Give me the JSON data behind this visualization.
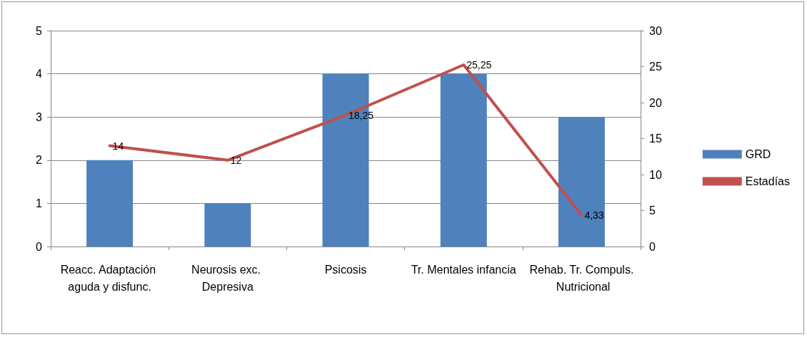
{
  "chart_data": {
    "type": "bar",
    "categories": [
      "Reacc. Adaptación aguda y disfunc.",
      "Neurosis exc. Depresiva",
      "Psicosis",
      "Tr. Mentales infancia",
      "Rehab. Tr. Compuls. Nutricional"
    ],
    "series": [
      {
        "name": "GRD",
        "color": "#4f81bd",
        "values": [
          2,
          1,
          4,
          4,
          3
        ]
      },
      {
        "name": "Estadías",
        "type": "line",
        "axis": "y2",
        "color": "#c0504d",
        "values": [
          14,
          12,
          18.25,
          25.25,
          4.33
        ],
        "value_labels": [
          "14",
          "12",
          "18,25",
          "25,25",
          "4,33"
        ]
      }
    ],
    "ylim": [
      0,
      5
    ],
    "yticks": [
      0,
      1,
      2,
      3,
      4,
      5
    ],
    "y2lim": [
      0,
      30
    ],
    "y2ticks": [
      0,
      5,
      10,
      15,
      20,
      25,
      30
    ],
    "grid": "y",
    "legend": "right",
    "marker": "none",
    "line_style": "solid"
  }
}
